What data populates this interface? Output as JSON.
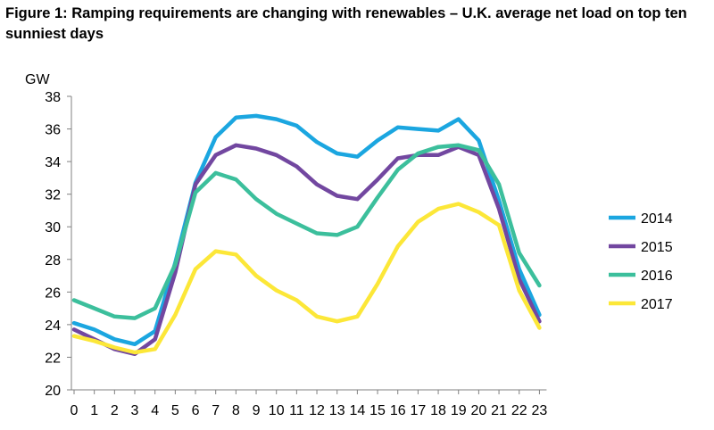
{
  "title": "Figure 1:  Ramping requirements are changing with renewables – U.K. average net load on top ten sunniest days",
  "chart_data": {
    "type": "line",
    "ylabel": "GW",
    "ylim": [
      20,
      38
    ],
    "yticks": [
      20,
      22,
      24,
      26,
      28,
      30,
      32,
      34,
      36,
      38
    ],
    "x": [
      0,
      1,
      2,
      3,
      4,
      5,
      6,
      7,
      8,
      9,
      10,
      11,
      12,
      13,
      14,
      15,
      16,
      17,
      18,
      19,
      20,
      21,
      22,
      23
    ],
    "grid": "none",
    "legend": "right",
    "series": [
      {
        "name": "2014",
        "color": "#1ba6e0",
        "values": [
          24.1,
          23.7,
          23.1,
          22.8,
          23.6,
          27.8,
          32.7,
          35.5,
          36.7,
          36.8,
          36.6,
          36.2,
          35.2,
          34.5,
          34.3,
          35.3,
          36.1,
          36.0,
          35.9,
          36.6,
          35.3,
          31.6,
          27.4,
          24.6
        ]
      },
      {
        "name": "2015",
        "color": "#7247a0",
        "values": [
          23.7,
          23.1,
          22.5,
          22.2,
          23.1,
          27.2,
          32.6,
          34.4,
          35.0,
          34.8,
          34.4,
          33.7,
          32.6,
          31.9,
          31.7,
          32.9,
          34.2,
          34.4,
          34.4,
          34.9,
          34.4,
          31.1,
          26.8,
          24.2
        ]
      },
      {
        "name": "2016",
        "color": "#3cbf9c",
        "values": [
          25.5,
          25.0,
          24.5,
          24.4,
          25.0,
          27.7,
          32.1,
          33.3,
          32.9,
          31.7,
          30.8,
          30.2,
          29.6,
          29.5,
          30.0,
          31.8,
          33.5,
          34.5,
          34.9,
          35.0,
          34.7,
          32.6,
          28.4,
          26.4
        ]
      },
      {
        "name": "2017",
        "color": "#fce738",
        "values": [
          23.3,
          23.0,
          22.6,
          22.3,
          22.5,
          24.6,
          27.4,
          28.5,
          28.3,
          27.0,
          26.1,
          25.5,
          24.5,
          24.2,
          24.5,
          26.5,
          28.8,
          30.3,
          31.1,
          31.4,
          30.9,
          30.1,
          26.1,
          23.8
        ]
      }
    ]
  }
}
